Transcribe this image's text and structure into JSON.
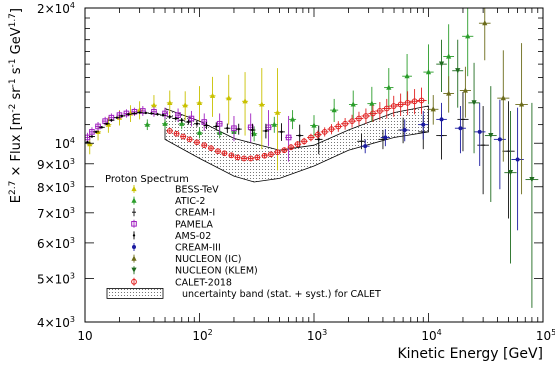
{
  "chart_data": {
    "type": "scatter",
    "title": "",
    "xscale": "log",
    "yscale": "log",
    "xlim": [
      10,
      100000
    ],
    "ylim": [
      4000,
      20000
    ],
    "xlabel": "Kinetic Energy [GeV]",
    "ylabel_parts": [
      "E",
      "2.7",
      " × Flux [m",
      "-2",
      " sr",
      "-1",
      " s",
      "-1",
      " GeV",
      "1.7",
      "]"
    ],
    "x_ticks": [
      {
        "v": 10,
        "label": "10"
      },
      {
        "v": 100,
        "label": "10",
        "exp": "2"
      },
      {
        "v": 1000,
        "label": "10",
        "exp": "3"
      },
      {
        "v": 10000,
        "label": "10",
        "exp": "4"
      },
      {
        "v": 100000,
        "label": "10",
        "exp": "5"
      }
    ],
    "y_ticks": [
      {
        "v": 4000,
        "label": "4×10",
        "exp": "3"
      },
      {
        "v": 5000,
        "label": "5×10",
        "exp": "3"
      },
      {
        "v": 6000,
        "label": "6×10",
        "exp": "3"
      },
      {
        "v": 7000,
        "label": "7×10",
        "exp": "3"
      },
      {
        "v": 8000,
        "label": "8×10",
        "exp": "3"
      },
      {
        "v": 9000,
        "label": "9×10",
        "exp": "3"
      },
      {
        "v": 10000,
        "label": "10",
        "exp": "4"
      },
      {
        "v": 20000,
        "label": "2×10",
        "exp": "4"
      }
    ],
    "legend_title": "Proton Spectrum",
    "legend_position": "bottom-left",
    "band": {
      "label": "uncertainty band (stat. + syst.) for CALET",
      "upper": [
        [
          50,
          11950
        ],
        [
          100,
          11200
        ],
        [
          200,
          10250
        ],
        [
          500,
          9650
        ],
        [
          1000,
          9900
        ],
        [
          2000,
          10700
        ],
        [
          5000,
          11700
        ],
        [
          10000,
          12100
        ]
      ],
      "lower": [
        [
          10000,
          10600
        ],
        [
          5000,
          10300
        ],
        [
          2000,
          9650
        ],
        [
          1000,
          8900
        ],
        [
          500,
          8350
        ],
        [
          300,
          8200
        ],
        [
          200,
          8450
        ],
        [
          100,
          9250
        ],
        [
          50,
          10200
        ]
      ]
    },
    "series": [
      {
        "name": "BESS-TeV",
        "color": "#c9c100",
        "marker": "star",
        "points": [
          [
            11,
            9950,
            500
          ],
          [
            13,
            10600,
            450
          ],
          [
            16,
            11000,
            450
          ],
          [
            20,
            11400,
            450
          ],
          [
            25,
            11650,
            500
          ],
          [
            30,
            11850,
            550
          ],
          [
            40,
            12150,
            650
          ],
          [
            55,
            12300,
            800
          ],
          [
            75,
            12150,
            900
          ],
          [
            100,
            12300,
            1100
          ],
          [
            130,
            12750,
            1300
          ],
          [
            180,
            12600,
            1600
          ],
          [
            250,
            12400,
            2000
          ],
          [
            350,
            12200,
            2500
          ],
          [
            480,
            11700,
            3000
          ]
        ]
      },
      {
        "name": "ATIC-2",
        "color": "#2a9d2a",
        "marker": "triangle-up",
        "points": [
          [
            35,
            11000,
            300
          ],
          [
            50,
            11050,
            300
          ],
          [
            70,
            11050,
            300
          ],
          [
            100,
            10550,
            300
          ],
          [
            150,
            10550,
            300
          ],
          [
            200,
            10600,
            400
          ],
          [
            300,
            10500,
            400
          ],
          [
            450,
            11000,
            450
          ],
          [
            650,
            11300,
            550
          ],
          [
            1000,
            10950,
            600
          ],
          [
            1500,
            11850,
            700
          ],
          [
            2200,
            12200,
            900
          ],
          [
            3200,
            12250,
            1100
          ],
          [
            4500,
            13300,
            1400
          ],
          [
            6500,
            14100,
            1700
          ],
          [
            10000,
            14400,
            2200
          ],
          [
            15000,
            15600,
            2800
          ],
          [
            22000,
            17300,
            3200
          ]
        ]
      },
      {
        "name": "CREAM-I",
        "color": "#111111",
        "marker": "plus",
        "points": [
          [
            2600,
            10100,
            400
          ],
          [
            4000,
            10200,
            500
          ],
          [
            6000,
            10700,
            700
          ],
          [
            9000,
            10600,
            900
          ],
          [
            13000,
            10400,
            1200
          ],
          [
            20000,
            11300,
            1700
          ],
          [
            30000,
            9900,
            2200
          ],
          [
            50000,
            9600,
            2800
          ]
        ]
      },
      {
        "name": "PAMELA",
        "color": "#a020c0",
        "marker": "square-open",
        "points": [
          [
            10.5,
            10300,
            250
          ],
          [
            11.5,
            10600,
            250
          ],
          [
            13,
            10900,
            250
          ],
          [
            15,
            11200,
            250
          ],
          [
            17,
            11400,
            250
          ],
          [
            20,
            11550,
            250
          ],
          [
            23,
            11650,
            250
          ],
          [
            27,
            11750,
            250
          ],
          [
            32,
            11800,
            300
          ],
          [
            40,
            11750,
            300
          ],
          [
            50,
            11650,
            350
          ],
          [
            65,
            11550,
            400
          ],
          [
            85,
            11350,
            450
          ],
          [
            110,
            11150,
            500
          ],
          [
            150,
            11050,
            600
          ],
          [
            200,
            10800,
            700
          ],
          [
            280,
            10850,
            800
          ],
          [
            400,
            10850,
            1000
          ],
          [
            600,
            10300,
            1200
          ]
        ]
      },
      {
        "name": "AMS-02",
        "color": "#000000",
        "marker": "circle-small",
        "points": [
          [
            10.5,
            10050,
            60
          ],
          [
            11.5,
            10350,
            60
          ],
          [
            12.5,
            10600,
            60
          ],
          [
            14,
            10850,
            60
          ],
          [
            15.5,
            11050,
            60
          ],
          [
            17,
            11250,
            60
          ],
          [
            19,
            11400,
            60
          ],
          [
            21,
            11500,
            60
          ],
          [
            24,
            11600,
            60
          ],
          [
            27,
            11650,
            60
          ],
          [
            30,
            11700,
            60
          ],
          [
            34,
            11680,
            70
          ],
          [
            38,
            11650,
            70
          ],
          [
            43,
            11600,
            80
          ],
          [
            48,
            11550,
            90
          ],
          [
            55,
            11450,
            100
          ],
          [
            62,
            11350,
            110
          ],
          [
            70,
            11250,
            130
          ],
          [
            80,
            11150,
            150
          ],
          [
            95,
            11050,
            170
          ],
          [
            115,
            10950,
            200
          ],
          [
            140,
            10900,
            230
          ],
          [
            175,
            10800,
            260
          ],
          [
            220,
            10750,
            300
          ],
          [
            290,
            10700,
            350
          ],
          [
            380,
            10650,
            400
          ],
          [
            520,
            10600,
            480
          ],
          [
            750,
            10400,
            600
          ],
          [
            1100,
            10200,
            750
          ]
        ]
      },
      {
        "name": "CREAM-III",
        "color": "#1a1aa0",
        "marker": "circle",
        "points": [
          [
            2800,
            9850,
            350
          ],
          [
            4200,
            10300,
            450
          ],
          [
            6200,
            10700,
            600
          ],
          [
            9000,
            11000,
            800
          ],
          [
            13000,
            11300,
            1000
          ],
          [
            19000,
            10800,
            1300
          ],
          [
            28000,
            10600,
            1700
          ],
          [
            42000,
            10200,
            2300
          ],
          [
            60000,
            9200,
            2800
          ]
        ]
      },
      {
        "name": "NUCLEON (IC)",
        "color": "#6b6b1a",
        "marker": "triangle-up",
        "points": [
          [
            11000,
            11900,
            900
          ],
          [
            15000,
            12900,
            1200
          ],
          [
            21000,
            13100,
            1700
          ],
          [
            31000,
            18500,
            3200
          ],
          [
            45000,
            12600,
            3500
          ],
          [
            65000,
            12200,
            4500
          ]
        ]
      },
      {
        "name": "NUCLEON (KLEM)",
        "color": "#1f6b1f",
        "marker": "triangle-down",
        "points": [
          [
            13000,
            15000,
            2000
          ],
          [
            18000,
            14500,
            2500
          ],
          [
            25000,
            12300,
            2800
          ],
          [
            35000,
            10400,
            3000
          ],
          [
            52000,
            8600,
            3200
          ],
          [
            80000,
            8300,
            4000
          ]
        ]
      },
      {
        "name": "CALET-2018",
        "color": "#e02020",
        "marker": "circle-open",
        "points": [
          [
            55,
            10650,
            90
          ],
          [
            63,
            10500,
            90
          ],
          [
            72,
            10350,
            90
          ],
          [
            82,
            10200,
            90
          ],
          [
            95,
            10050,
            90
          ],
          [
            110,
            9900,
            90
          ],
          [
            126,
            9750,
            90
          ],
          [
            145,
            9600,
            90
          ],
          [
            165,
            9500,
            90
          ],
          [
            190,
            9400,
            90
          ],
          [
            215,
            9300,
            90
          ],
          [
            245,
            9250,
            90
          ],
          [
            280,
            9250,
            100
          ],
          [
            320,
            9300,
            100
          ],
          [
            370,
            9380,
            110
          ],
          [
            420,
            9450,
            120
          ],
          [
            480,
            9550,
            130
          ],
          [
            550,
            9650,
            140
          ],
          [
            630,
            9800,
            150
          ],
          [
            720,
            9950,
            160
          ],
          [
            820,
            10100,
            180
          ],
          [
            940,
            10300,
            200
          ],
          [
            1080,
            10450,
            220
          ],
          [
            1240,
            10600,
            250
          ],
          [
            1420,
            10750,
            280
          ],
          [
            1630,
            10900,
            300
          ],
          [
            1870,
            11050,
            330
          ],
          [
            2150,
            11200,
            370
          ],
          [
            2470,
            11350,
            400
          ],
          [
            2840,
            11500,
            450
          ],
          [
            3270,
            11650,
            500
          ],
          [
            3760,
            11800,
            550
          ],
          [
            4320,
            11950,
            600
          ],
          [
            4970,
            12100,
            650
          ],
          [
            5710,
            12200,
            700
          ],
          [
            6570,
            12300,
            750
          ],
          [
            7560,
            12400,
            800
          ],
          [
            8690,
            12450,
            850
          ]
        ]
      }
    ]
  }
}
